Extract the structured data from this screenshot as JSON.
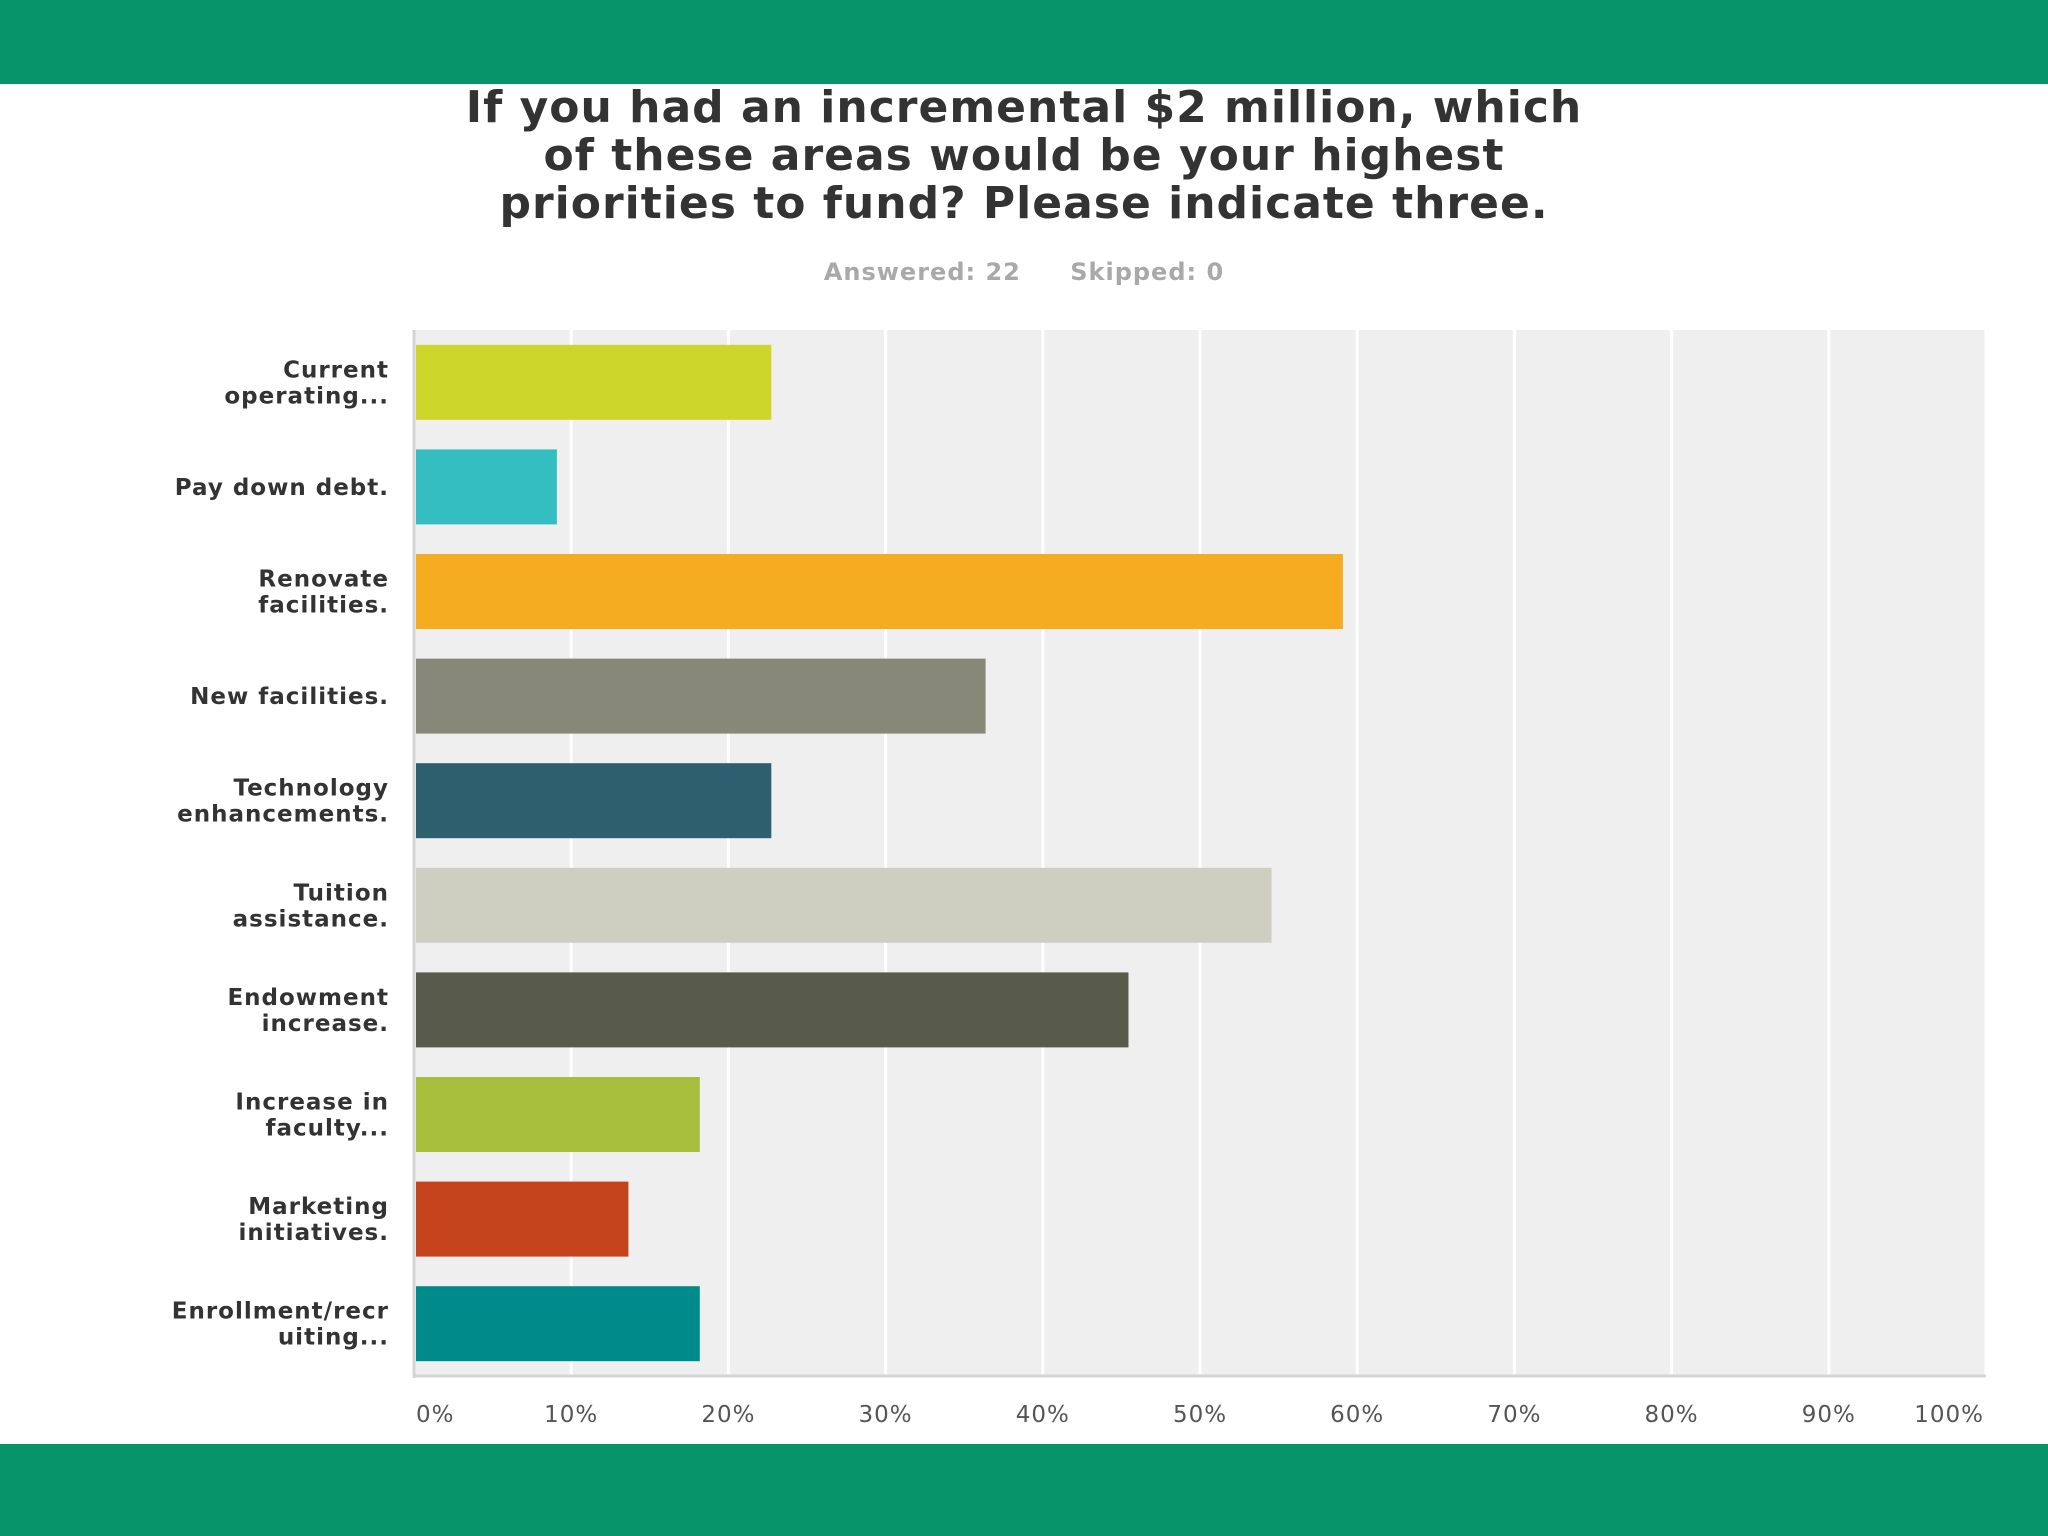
{
  "chart_data": {
    "type": "bar",
    "orientation": "horizontal",
    "title_lines": [
      "If you had an incremental $2 million, which",
      "of these areas would be your highest",
      "priorities to fund? Please indicate three."
    ],
    "answered_label": "Answered: 22",
    "skipped_label": "Skipped: 0",
    "categories": [
      [
        "Current",
        "operating..."
      ],
      [
        "Pay down debt."
      ],
      [
        "Renovate",
        "facilities."
      ],
      [
        "New facilities."
      ],
      [
        "Technology",
        "enhancements."
      ],
      [
        "Tuition",
        "assistance."
      ],
      [
        "Endowment",
        "increase."
      ],
      [
        "Increase in",
        "faculty..."
      ],
      [
        "Marketing",
        "initiatives."
      ],
      [
        "Enrollment/recr",
        "uiting..."
      ]
    ],
    "values": [
      22.73,
      9.09,
      59.09,
      36.36,
      22.73,
      54.55,
      45.45,
      18.18,
      13.64,
      18.18
    ],
    "colors": [
      "#cdd62a",
      "#34bec1",
      "#f6ac21",
      "#878878",
      "#2d5f6e",
      "#cfcfc1",
      "#585b4a",
      "#a7be3d",
      "#c6441d",
      "#008b8b"
    ],
    "xlim": [
      0,
      100
    ],
    "ticks": [
      "0%",
      "10%",
      "20%",
      "30%",
      "40%",
      "50%",
      "60%",
      "70%",
      "80%",
      "90%",
      "100%"
    ],
    "plot_background": "#f0eff0",
    "grid": true
  }
}
